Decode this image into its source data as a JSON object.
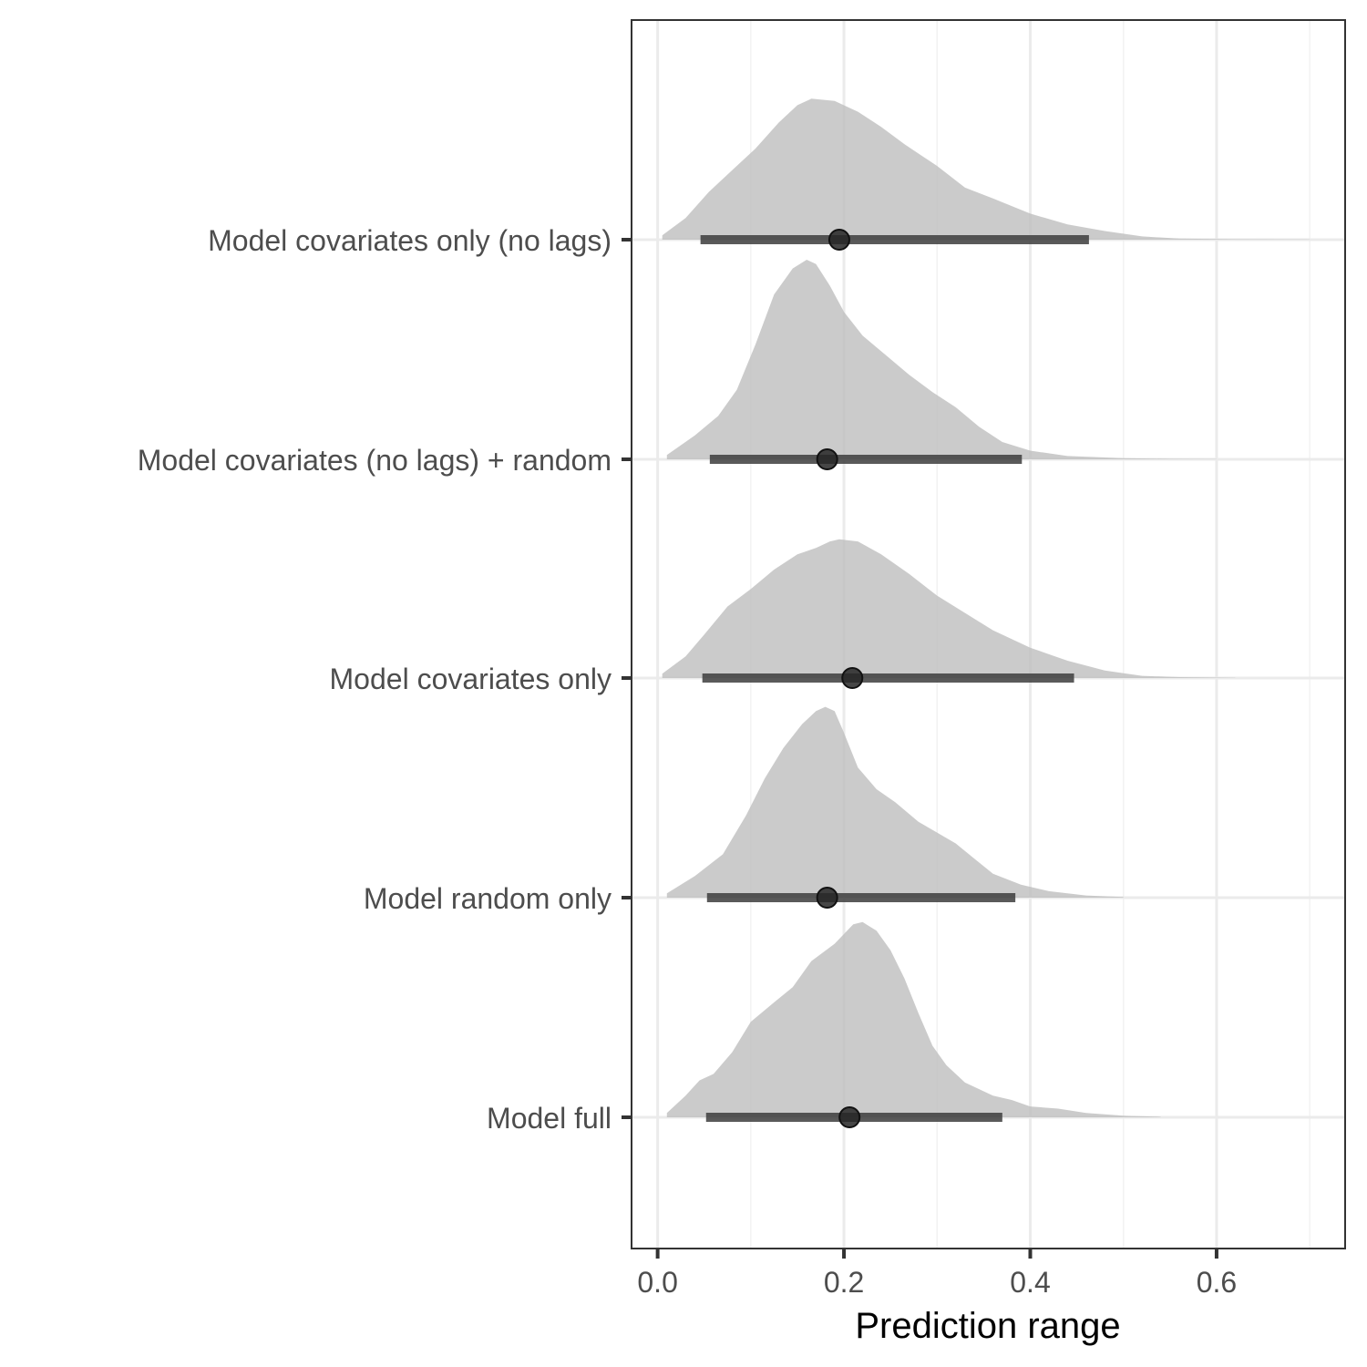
{
  "chart_data": {
    "type": "halfeye",
    "xlabel": "Prediction range",
    "ylabel": "",
    "xlim": [
      -0.028,
      0.738
    ],
    "xticks": [
      0.0,
      0.2,
      0.4,
      0.6
    ],
    "xtick_labels": [
      "0.0",
      "0.2",
      "0.4",
      "0.6"
    ],
    "grid": true,
    "theme": "bw",
    "colors": {
      "density_fill": "#bebebe",
      "interval": "#3d3d3d",
      "point": "#262626",
      "grid_major": "#ebebeb",
      "grid_minor": "#f2f2f2",
      "panel_border": "#333333",
      "tick_text": "#4d4d4d"
    },
    "categories": [
      "Model full",
      "Model random only",
      "Model covariates only",
      "Model covariates (no lags) + random",
      "Model covariates only (no lags)"
    ],
    "series": [
      {
        "name": "Model full",
        "point": 0.206,
        "interval": [
          0.052,
          0.37
        ],
        "density": [
          [
            0.01,
            0.02
          ],
          [
            0.03,
            0.1
          ],
          [
            0.045,
            0.17
          ],
          [
            0.06,
            0.2
          ],
          [
            0.08,
            0.3
          ],
          [
            0.1,
            0.44
          ],
          [
            0.125,
            0.53
          ],
          [
            0.145,
            0.6
          ],
          [
            0.165,
            0.72
          ],
          [
            0.19,
            0.8
          ],
          [
            0.21,
            0.89
          ],
          [
            0.22,
            0.9
          ],
          [
            0.235,
            0.86
          ],
          [
            0.25,
            0.77
          ],
          [
            0.265,
            0.64
          ],
          [
            0.28,
            0.48
          ],
          [
            0.295,
            0.33
          ],
          [
            0.31,
            0.24
          ],
          [
            0.33,
            0.16
          ],
          [
            0.36,
            0.1
          ],
          [
            0.38,
            0.08
          ],
          [
            0.4,
            0.05
          ],
          [
            0.43,
            0.04
          ],
          [
            0.46,
            0.02
          ],
          [
            0.5,
            0.007
          ],
          [
            0.54,
            0.002
          ]
        ]
      },
      {
        "name": "Model random only",
        "point": 0.182,
        "interval": [
          0.053,
          0.384
        ],
        "density": [
          [
            0.01,
            0.02
          ],
          [
            0.04,
            0.1
          ],
          [
            0.07,
            0.2
          ],
          [
            0.095,
            0.38
          ],
          [
            0.115,
            0.55
          ],
          [
            0.135,
            0.69
          ],
          [
            0.155,
            0.8
          ],
          [
            0.17,
            0.86
          ],
          [
            0.18,
            0.88
          ],
          [
            0.19,
            0.86
          ],
          [
            0.2,
            0.76
          ],
          [
            0.215,
            0.6
          ],
          [
            0.235,
            0.5
          ],
          [
            0.255,
            0.44
          ],
          [
            0.28,
            0.35
          ],
          [
            0.3,
            0.3
          ],
          [
            0.32,
            0.25
          ],
          [
            0.34,
            0.18
          ],
          [
            0.36,
            0.11
          ],
          [
            0.39,
            0.06
          ],
          [
            0.42,
            0.03
          ],
          [
            0.46,
            0.01
          ],
          [
            0.5,
            0.003
          ]
        ]
      },
      {
        "name": "Model covariates only",
        "point": 0.209,
        "interval": [
          0.048,
          0.447
        ],
        "density": [
          [
            0.005,
            0.02
          ],
          [
            0.03,
            0.1
          ],
          [
            0.05,
            0.2
          ],
          [
            0.075,
            0.33
          ],
          [
            0.1,
            0.41
          ],
          [
            0.125,
            0.5
          ],
          [
            0.15,
            0.57
          ],
          [
            0.17,
            0.6
          ],
          [
            0.185,
            0.63
          ],
          [
            0.195,
            0.64
          ],
          [
            0.215,
            0.63
          ],
          [
            0.24,
            0.57
          ],
          [
            0.27,
            0.48
          ],
          [
            0.3,
            0.38
          ],
          [
            0.33,
            0.3
          ],
          [
            0.36,
            0.22
          ],
          [
            0.4,
            0.14
          ],
          [
            0.44,
            0.08
          ],
          [
            0.48,
            0.035
          ],
          [
            0.52,
            0.01
          ],
          [
            0.56,
            0.004
          ],
          [
            0.62,
            0.001
          ]
        ]
      },
      {
        "name": "Model covariates (no lags) + random",
        "point": 0.182,
        "interval": [
          0.056,
          0.391
        ],
        "density": [
          [
            0.01,
            0.02
          ],
          [
            0.04,
            0.11
          ],
          [
            0.065,
            0.2
          ],
          [
            0.085,
            0.32
          ],
          [
            0.105,
            0.53
          ],
          [
            0.125,
            0.76
          ],
          [
            0.145,
            0.88
          ],
          [
            0.16,
            0.92
          ],
          [
            0.17,
            0.9
          ],
          [
            0.185,
            0.8
          ],
          [
            0.2,
            0.68
          ],
          [
            0.22,
            0.57
          ],
          [
            0.245,
            0.48
          ],
          [
            0.27,
            0.39
          ],
          [
            0.295,
            0.31
          ],
          [
            0.32,
            0.24
          ],
          [
            0.345,
            0.15
          ],
          [
            0.37,
            0.08
          ],
          [
            0.4,
            0.04
          ],
          [
            0.44,
            0.015
          ],
          [
            0.5,
            0.005
          ],
          [
            0.55,
            0.002
          ],
          [
            0.6,
            0.001
          ]
        ]
      },
      {
        "name": "Model covariates only (no lags)",
        "point": 0.195,
        "interval": [
          0.046,
          0.463
        ],
        "density": [
          [
            0.005,
            0.02
          ],
          [
            0.03,
            0.1
          ],
          [
            0.055,
            0.22
          ],
          [
            0.08,
            0.32
          ],
          [
            0.105,
            0.42
          ],
          [
            0.13,
            0.54
          ],
          [
            0.15,
            0.62
          ],
          [
            0.165,
            0.65
          ],
          [
            0.19,
            0.64
          ],
          [
            0.215,
            0.59
          ],
          [
            0.24,
            0.52
          ],
          [
            0.265,
            0.44
          ],
          [
            0.3,
            0.34
          ],
          [
            0.33,
            0.24
          ],
          [
            0.36,
            0.19
          ],
          [
            0.4,
            0.12
          ],
          [
            0.44,
            0.07
          ],
          [
            0.48,
            0.04
          ],
          [
            0.52,
            0.015
          ],
          [
            0.56,
            0.005
          ],
          [
            0.62,
            0.002
          ],
          [
            0.7,
            0.001
          ]
        ]
      }
    ]
  }
}
